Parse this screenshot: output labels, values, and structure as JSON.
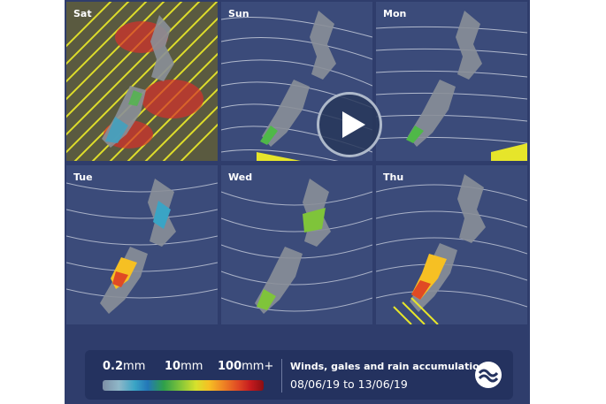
{
  "panels": [
    {
      "id": "sat",
      "label": "Sat"
    },
    {
      "id": "sun",
      "label": "Sun"
    },
    {
      "id": "mon",
      "label": "Mon"
    },
    {
      "id": "tue",
      "label": "Tue"
    },
    {
      "id": "wed",
      "label": "Wed"
    },
    {
      "id": "thu",
      "label": "Thu"
    }
  ],
  "legend": {
    "scale": {
      "min": {
        "num": "0.2",
        "unit": "mm"
      },
      "mid": {
        "num": "10",
        "unit": "mm"
      },
      "max": {
        "num": "100",
        "unit": "mm+"
      }
    },
    "title": "Winds, gales and rain accumulation",
    "dates": "08/06/19 to 13/06/19"
  },
  "play_button": {
    "icon": "play-icon"
  },
  "logo": {
    "icon": "metservice-logo-icon"
  },
  "colors": {
    "background": "#2f3d6c",
    "legend_background": "#24325f",
    "wind_lines": "#d8dde8",
    "gale": "#e8e020",
    "rain_low": "#3aa4c5",
    "rain_high": "#c41a1e"
  }
}
